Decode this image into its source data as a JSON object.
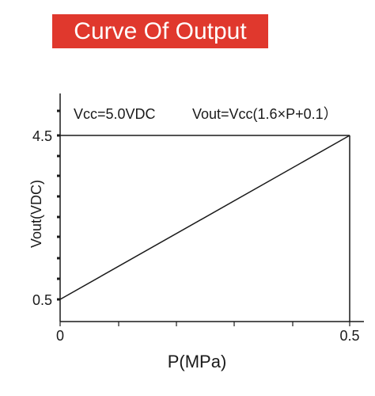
{
  "chart_data": {
    "type": "line",
    "title": "Curve Of Output",
    "xlabel": "P(MPa)",
    "ylabel": "Vout(VDC)",
    "xlim": [
      0,
      0.5
    ],
    "ylim": [
      0.5,
      4.5
    ],
    "x_ticks": [
      "0",
      "0.5"
    ],
    "y_ticks": [
      "0.5",
      "4.5"
    ],
    "grid": false,
    "annotations": [
      "Vcc=5.0VDC",
      "Vout=Vcc(1.6×P+0.1）"
    ],
    "series": [
      {
        "x": [
          0,
          0.5
        ],
        "y": [
          0.5,
          4.5
        ]
      }
    ],
    "colors": {
      "title_background": "#e0382d",
      "title_text": "#ffffff",
      "line": "#1a1a1a"
    }
  }
}
